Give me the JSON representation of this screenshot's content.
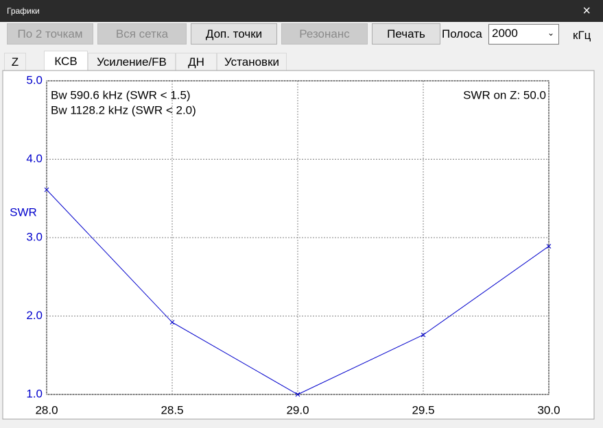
{
  "window": {
    "title": "Графики",
    "close": "×"
  },
  "toolbar": {
    "buttons": [
      {
        "label": "По 2 точкам",
        "enabled": false
      },
      {
        "label": "Вся сетка",
        "enabled": false
      },
      {
        "label": "Доп. точки",
        "enabled": true
      },
      {
        "label": "Резонанс",
        "enabled": false
      },
      {
        "label": "Печать",
        "enabled": true
      }
    ],
    "band_label": "Полоса",
    "band_value": "2000",
    "band_unit": "кГц"
  },
  "tabs": {
    "items": [
      "Z",
      "КСВ",
      "Усиление/FB",
      "ДН",
      "Установки"
    ],
    "selected": 1
  },
  "chart_data": {
    "type": "line",
    "x": [
      28.0,
      28.5,
      29.0,
      29.5,
      30.0
    ],
    "series": [
      {
        "name": "SWR",
        "color": "#0000cc",
        "values": [
          3.61,
          1.92,
          1.0,
          1.76,
          2.89
        ]
      }
    ],
    "y_label": "SWR",
    "annotations": [
      "Bw 590.6 kHz (SWR < 1.5)",
      "Bw 1128.2 kHz (SWR < 2.0)",
      "SWR on Z: 50.0"
    ],
    "xlim": [
      28.0,
      30.0
    ],
    "xticks": [
      {
        "value": 28,
        "label": "28.0"
      },
      {
        "value": 28.5,
        "label": "28.5"
      },
      {
        "value": 29,
        "label": "29.0"
      },
      {
        "value": 29.5,
        "label": "29.5"
      },
      {
        "value": 30,
        "label": "30.0"
      }
    ],
    "ylim": [
      1.0,
      5.0
    ],
    "yticks": [
      {
        "value": 1,
        "label": "1.0"
      },
      {
        "value": 2,
        "label": "2.0"
      },
      {
        "value": 3,
        "label": "3.0"
      },
      {
        "value": 4,
        "label": "4.0"
      },
      {
        "value": 5,
        "label": "5.0"
      }
    ],
    "grid": true
  }
}
